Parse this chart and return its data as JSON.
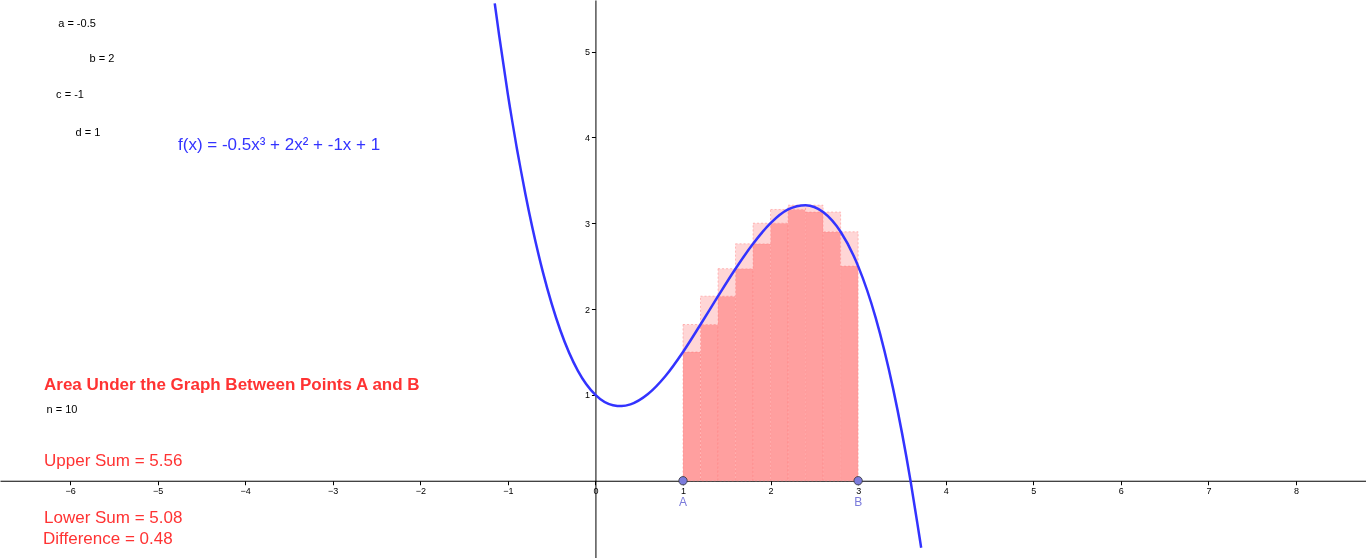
{
  "chart_data": {
    "type": "line",
    "title": "Area Under the Graph Between Points A and B",
    "xlim": [
      -6.8,
      8.8
    ],
    "ylim": [
      -0.9,
      5.6
    ],
    "xticks": [
      -6,
      -5,
      -4,
      -3,
      -2,
      -1,
      0,
      1,
      2,
      3,
      4,
      5,
      6,
      7,
      8
    ],
    "yticks": [
      1,
      2,
      3,
      4,
      5
    ],
    "grid": false,
    "line_style": "solid",
    "stacked": true,
    "series": [
      {
        "type": "bar",
        "color": "#ff9f9f",
        "x": [
          1.1,
          1.3,
          1.5,
          1.7,
          1.9,
          2.1,
          2.3,
          2.5,
          2.7,
          2.9
        ],
        "values": [
          1.5,
          1.82,
          2.15,
          2.47,
          2.76,
          3.0,
          3.16,
          3.13,
          2.9,
          2.5
        ]
      },
      {
        "type": "bar",
        "color": "#ffd6d6",
        "x": [
          1.1,
          1.3,
          1.5,
          1.7,
          1.9,
          2.1,
          2.3,
          2.5,
          2.7,
          2.9
        ],
        "values": [
          0.32,
          0.33,
          0.32,
          0.29,
          0.24,
          0.16,
          0.05,
          0.08,
          0.23,
          0.4
        ]
      },
      {
        "color": "#3333ff",
        "x": [
          -1.15,
          -1.1,
          -1.0,
          -0.8,
          -0.6,
          -0.4,
          -0.2,
          0,
          0.2,
          0.3,
          0.4,
          0.6,
          0.8,
          1.0,
          1.2,
          1.4,
          1.6,
          1.8,
          2.0,
          2.2,
          2.4,
          2.6,
          2.8,
          3.0,
          3.2,
          3.4,
          3.6,
          3.7,
          3.72
        ],
        "values": [
          5.56,
          5.19,
          4.5,
          3.34,
          2.43,
          1.75,
          1.28,
          1.0,
          0.88,
          0.87,
          0.89,
          1.01,
          1.22,
          1.5,
          1.82,
          2.15,
          2.47,
          2.76,
          3.0,
          3.16,
          3.21,
          3.13,
          2.9,
          2.5,
          1.9,
          1.07,
          -0.01,
          -0.65,
          -0.78
        ]
      },
      {
        "type": "scatter",
        "marker": "circle",
        "color": "#7b7bdb",
        "x": [
          1,
          3
        ],
        "values": [
          0,
          0
        ]
      }
    ],
    "annotations": [
      "a = -0.5",
      "b = 2",
      "c = -1",
      "d = 1",
      "f(x) = -0.5x³ + 2x² + -1x + 1",
      "n = 10",
      "Upper Sum = 5.56",
      "Lower Sum = 5.08",
      "Difference = 0.48",
      {
        "text": "A",
        "x": 1,
        "y": 0
      },
      {
        "text": "B",
        "x": 3,
        "y": 0
      }
    ]
  }
}
